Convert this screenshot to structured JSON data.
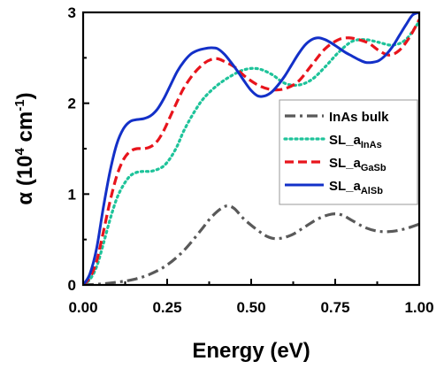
{
  "chart_data": {
    "type": "line",
    "xlabel": "Energy (eV)",
    "ylabel": {
      "prefix": "α (10",
      "exp1": "4",
      "mid": " cm",
      "exp2": "-1",
      "suffix": ")"
    },
    "xlim": [
      0,
      1
    ],
    "ylim": [
      0,
      3
    ],
    "x_ticks": [
      0,
      0.25,
      0.5,
      0.75,
      1
    ],
    "x_tick_labels": [
      "0.00",
      "0.25",
      "0.50",
      "0.75",
      "1.00"
    ],
    "y_ticks": [
      0,
      1,
      2,
      3
    ],
    "y_tick_labels": [
      "0",
      "1",
      "2",
      "3"
    ],
    "grid": false,
    "legend_position": "right",
    "series": [
      {
        "name": "InAs bulk",
        "label_main": "InAs bulk",
        "label_sub": "",
        "color": "#595959",
        "style": "dashdot",
        "x": [
          0.0,
          0.05,
          0.1,
          0.15,
          0.2,
          0.25,
          0.3,
          0.35,
          0.38,
          0.41,
          0.43,
          0.45,
          0.48,
          0.52,
          0.55,
          0.58,
          0.62,
          0.66,
          0.7,
          0.74,
          0.77,
          0.8,
          0.84,
          0.88,
          0.92,
          0.96,
          1.0
        ],
        "y": [
          0.0,
          0.01,
          0.03,
          0.06,
          0.12,
          0.22,
          0.38,
          0.6,
          0.74,
          0.84,
          0.87,
          0.84,
          0.72,
          0.6,
          0.53,
          0.51,
          0.55,
          0.64,
          0.73,
          0.78,
          0.77,
          0.71,
          0.63,
          0.59,
          0.59,
          0.62,
          0.67
        ]
      },
      {
        "name": "SL_a_InAs",
        "label_main": "SL_a",
        "label_sub": "InAs",
        "color": "#1ec39a",
        "style": "dotted",
        "x": [
          0.0,
          0.02,
          0.04,
          0.06,
          0.08,
          0.1,
          0.12,
          0.14,
          0.16,
          0.18,
          0.2,
          0.22,
          0.24,
          0.26,
          0.28,
          0.3,
          0.33,
          0.36,
          0.4,
          0.44,
          0.48,
          0.52,
          0.56,
          0.6,
          0.64,
          0.68,
          0.72,
          0.76,
          0.8,
          0.84,
          0.88,
          0.92,
          0.96,
          1.0
        ],
        "y": [
          0.0,
          0.06,
          0.2,
          0.45,
          0.72,
          0.95,
          1.1,
          1.2,
          1.24,
          1.25,
          1.25,
          1.27,
          1.31,
          1.4,
          1.53,
          1.7,
          1.9,
          2.06,
          2.2,
          2.3,
          2.37,
          2.38,
          2.32,
          2.22,
          2.2,
          2.26,
          2.4,
          2.56,
          2.68,
          2.7,
          2.67,
          2.64,
          2.7,
          2.9
        ]
      },
      {
        "name": "SL_a_GaSb",
        "label_main": "SL_a",
        "label_sub": "GaSb",
        "color": "#e8141c",
        "style": "dashed",
        "x": [
          0.0,
          0.02,
          0.04,
          0.06,
          0.08,
          0.1,
          0.12,
          0.14,
          0.16,
          0.18,
          0.2,
          0.22,
          0.24,
          0.26,
          0.28,
          0.3,
          0.33,
          0.36,
          0.38,
          0.4,
          0.42,
          0.45,
          0.48,
          0.52,
          0.56,
          0.6,
          0.64,
          0.68,
          0.72,
          0.76,
          0.79,
          0.82,
          0.85,
          0.88,
          0.91,
          0.94,
          0.97,
          1.0
        ],
        "y": [
          0.0,
          0.08,
          0.26,
          0.58,
          0.92,
          1.2,
          1.38,
          1.47,
          1.5,
          1.5,
          1.52,
          1.58,
          1.7,
          1.86,
          2.02,
          2.17,
          2.33,
          2.44,
          2.48,
          2.49,
          2.46,
          2.4,
          2.3,
          2.2,
          2.15,
          2.16,
          2.24,
          2.42,
          2.6,
          2.7,
          2.72,
          2.7,
          2.66,
          2.58,
          2.53,
          2.58,
          2.72,
          2.92
        ]
      },
      {
        "name": "SL_a_AlSb",
        "label_main": "SL_a",
        "label_sub": "AlSb",
        "color": "#1330c8",
        "style": "solid",
        "x": [
          0.0,
          0.02,
          0.04,
          0.06,
          0.08,
          0.1,
          0.12,
          0.14,
          0.16,
          0.18,
          0.2,
          0.22,
          0.24,
          0.26,
          0.28,
          0.3,
          0.32,
          0.34,
          0.36,
          0.38,
          0.4,
          0.42,
          0.44,
          0.46,
          0.48,
          0.5,
          0.52,
          0.54,
          0.56,
          0.58,
          0.6,
          0.62,
          0.64,
          0.66,
          0.68,
          0.7,
          0.72,
          0.74,
          0.76,
          0.78,
          0.8,
          0.82,
          0.84,
          0.86,
          0.88,
          0.9,
          0.92,
          0.94,
          0.96,
          0.98,
          1.0
        ],
        "y": [
          0.0,
          0.12,
          0.4,
          0.85,
          1.25,
          1.55,
          1.72,
          1.8,
          1.82,
          1.83,
          1.86,
          1.93,
          2.05,
          2.2,
          2.35,
          2.46,
          2.54,
          2.58,
          2.6,
          2.61,
          2.6,
          2.54,
          2.45,
          2.35,
          2.24,
          2.14,
          2.08,
          2.08,
          2.12,
          2.2,
          2.3,
          2.42,
          2.54,
          2.64,
          2.7,
          2.72,
          2.7,
          2.66,
          2.61,
          2.56,
          2.52,
          2.48,
          2.45,
          2.45,
          2.47,
          2.53,
          2.62,
          2.74,
          2.86,
          2.97,
          3.0
        ]
      }
    ]
  }
}
